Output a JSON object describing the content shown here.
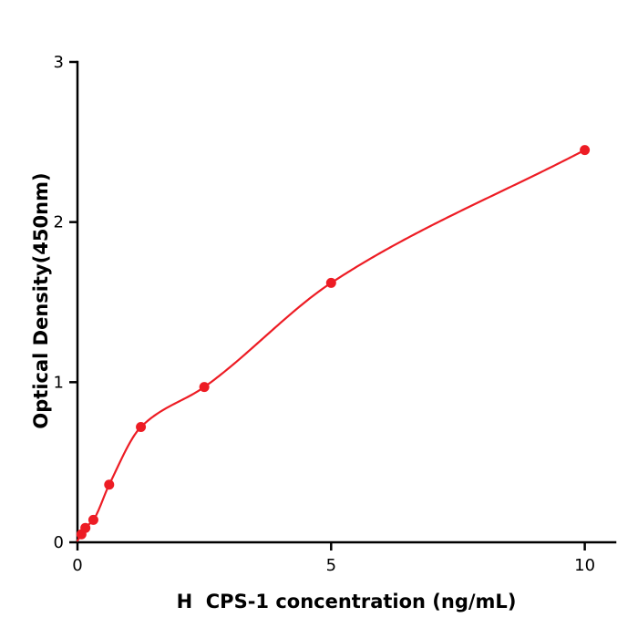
{
  "chart_data": {
    "type": "scatter",
    "title": "",
    "xlabel": "H  CPS-1 concentration (ng/mL)",
    "ylabel": "Optical Density(450nm)",
    "x": [
      0.078,
      0.156,
      0.313,
      0.625,
      1.25,
      2.5,
      5,
      10
    ],
    "y": [
      0.05,
      0.09,
      0.14,
      0.36,
      0.72,
      0.97,
      1.62,
      2.45
    ],
    "curve_origin": [
      0,
      0.01
    ],
    "xlim": [
      0,
      10.6
    ],
    "ylim": [
      0,
      3
    ],
    "xticks": [
      0,
      5,
      10
    ],
    "yticks": [
      0,
      1,
      2,
      3
    ],
    "grid": false,
    "legend": "none",
    "marker": "circle",
    "marker_color": "#ed1c24",
    "line_color": "#ed1c24",
    "axis_color": "#000000",
    "background_color": "#ffffff"
  }
}
